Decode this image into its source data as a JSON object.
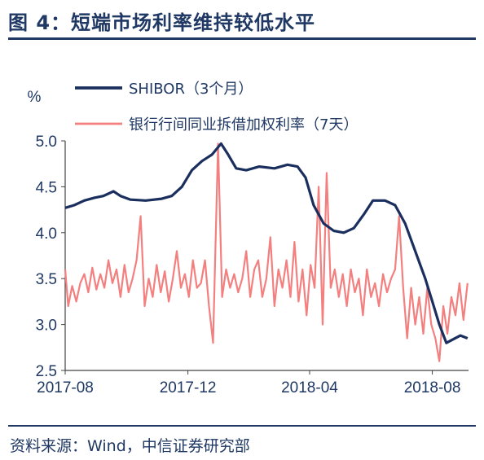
{
  "title": "图 4：短端市场利率维持较低水平",
  "source": "资料来源：Wind，中信证券研究部",
  "colors": {
    "shibor": "#1b2f5e",
    "interbank": "#f37f7f",
    "text": "#1f3864"
  },
  "chart_data": {
    "type": "line",
    "ylabel": "%",
    "ylim": [
      2.5,
      5.0
    ],
    "yticks": [
      "2.5",
      "3.0",
      "3.5",
      "4.0",
      "4.5",
      "5.0"
    ],
    "xlim": [
      "2017-08-01",
      "2018-09-06"
    ],
    "xticks": [
      {
        "label": "2017-08",
        "date": "2017-08-01"
      },
      {
        "label": "2017-12",
        "date": "2017-12-01"
      },
      {
        "label": "2018-04",
        "date": "2018-04-01"
      },
      {
        "label": "2018-08",
        "date": "2018-08-01"
      }
    ],
    "legend_position": "top-left",
    "grid": false,
    "series": [
      {
        "name": "SHIBOR（3个月）",
        "points": [
          [
            "2017-08-01",
            4.27
          ],
          [
            "2017-08-10",
            4.3
          ],
          [
            "2017-08-20",
            4.35
          ],
          [
            "2017-08-30",
            4.38
          ],
          [
            "2017-09-08",
            4.4
          ],
          [
            "2017-09-18",
            4.45
          ],
          [
            "2017-09-25",
            4.4
          ],
          [
            "2017-10-05",
            4.36
          ],
          [
            "2017-10-20",
            4.35
          ],
          [
            "2017-11-05",
            4.37
          ],
          [
            "2017-11-15",
            4.4
          ],
          [
            "2017-11-25",
            4.5
          ],
          [
            "2017-12-05",
            4.68
          ],
          [
            "2017-12-15",
            4.78
          ],
          [
            "2017-12-25",
            4.85
          ],
          [
            "2018-01-03",
            4.97
          ],
          [
            "2018-01-10",
            4.85
          ],
          [
            "2018-01-18",
            4.7
          ],
          [
            "2018-01-28",
            4.68
          ],
          [
            "2018-02-10",
            4.72
          ],
          [
            "2018-02-25",
            4.7
          ],
          [
            "2018-03-10",
            4.74
          ],
          [
            "2018-03-20",
            4.72
          ],
          [
            "2018-03-28",
            4.6
          ],
          [
            "2018-04-05",
            4.3
          ],
          [
            "2018-04-15",
            4.1
          ],
          [
            "2018-04-25",
            4.02
          ],
          [
            "2018-05-05",
            4.0
          ],
          [
            "2018-05-15",
            4.05
          ],
          [
            "2018-05-25",
            4.2
          ],
          [
            "2018-06-03",
            4.35
          ],
          [
            "2018-06-15",
            4.35
          ],
          [
            "2018-06-25",
            4.3
          ],
          [
            "2018-07-05",
            4.1
          ],
          [
            "2018-07-15",
            3.8
          ],
          [
            "2018-07-25",
            3.5
          ],
          [
            "2018-08-01",
            3.25
          ],
          [
            "2018-08-08",
            3.0
          ],
          [
            "2018-08-15",
            2.8
          ],
          [
            "2018-08-22",
            2.84
          ],
          [
            "2018-08-29",
            2.88
          ],
          [
            "2018-09-05",
            2.85
          ]
        ]
      },
      {
        "name": "银行行间同业拆借加权利率（7天）",
        "points": [
          [
            "2017-08-01",
            3.6
          ],
          [
            "2017-08-04",
            3.2
          ],
          [
            "2017-08-08",
            3.42
          ],
          [
            "2017-08-12",
            3.25
          ],
          [
            "2017-08-16",
            3.45
          ],
          [
            "2017-08-20",
            3.55
          ],
          [
            "2017-08-24",
            3.35
          ],
          [
            "2017-08-28",
            3.62
          ],
          [
            "2017-09-01",
            3.38
          ],
          [
            "2017-09-05",
            3.55
          ],
          [
            "2017-09-09",
            3.4
          ],
          [
            "2017-09-13",
            3.7
          ],
          [
            "2017-09-17",
            3.45
          ],
          [
            "2017-09-21",
            3.6
          ],
          [
            "2017-09-25",
            3.3
          ],
          [
            "2017-09-29",
            3.65
          ],
          [
            "2017-10-03",
            3.35
          ],
          [
            "2017-10-07",
            3.5
          ],
          [
            "2017-10-11",
            3.7
          ],
          [
            "2017-10-15",
            4.18
          ],
          [
            "2017-10-19",
            3.2
          ],
          [
            "2017-10-23",
            3.5
          ],
          [
            "2017-10-27",
            3.3
          ],
          [
            "2017-10-31",
            3.65
          ],
          [
            "2017-11-04",
            3.35
          ],
          [
            "2017-11-08",
            3.58
          ],
          [
            "2017-11-12",
            3.25
          ],
          [
            "2017-11-16",
            3.5
          ],
          [
            "2017-11-20",
            3.8
          ],
          [
            "2017-11-24",
            3.4
          ],
          [
            "2017-11-28",
            3.55
          ],
          [
            "2017-12-02",
            3.3
          ],
          [
            "2017-12-06",
            3.7
          ],
          [
            "2017-12-10",
            3.4
          ],
          [
            "2017-12-14",
            3.45
          ],
          [
            "2017-12-18",
            3.7
          ],
          [
            "2017-12-22",
            3.2
          ],
          [
            "2017-12-26",
            2.8
          ],
          [
            "2017-12-31",
            4.97
          ],
          [
            "2018-01-04",
            3.3
          ],
          [
            "2018-01-08",
            3.6
          ],
          [
            "2018-01-12",
            3.4
          ],
          [
            "2018-01-16",
            3.55
          ],
          [
            "2018-01-20",
            3.35
          ],
          [
            "2018-01-24",
            3.5
          ],
          [
            "2018-01-28",
            3.8
          ],
          [
            "2018-02-01",
            3.3
          ],
          [
            "2018-02-05",
            3.6
          ],
          [
            "2018-02-09",
            3.7
          ],
          [
            "2018-02-13",
            3.3
          ],
          [
            "2018-02-17",
            3.5
          ],
          [
            "2018-02-21",
            3.95
          ],
          [
            "2018-02-25",
            3.2
          ],
          [
            "2018-03-01",
            3.6
          ],
          [
            "2018-03-05",
            3.4
          ],
          [
            "2018-03-09",
            3.7
          ],
          [
            "2018-03-13",
            3.3
          ],
          [
            "2018-03-17",
            3.9
          ],
          [
            "2018-03-21",
            3.25
          ],
          [
            "2018-03-25",
            3.6
          ],
          [
            "2018-03-29",
            3.1
          ],
          [
            "2018-04-02",
            3.65
          ],
          [
            "2018-04-06",
            3.4
          ],
          [
            "2018-04-10",
            4.5
          ],
          [
            "2018-04-14",
            3.0
          ],
          [
            "2018-04-18",
            4.65
          ],
          [
            "2018-04-22",
            3.4
          ],
          [
            "2018-04-26",
            3.6
          ],
          [
            "2018-04-30",
            3.3
          ],
          [
            "2018-05-04",
            3.55
          ],
          [
            "2018-05-08",
            3.2
          ],
          [
            "2018-05-12",
            3.6
          ],
          [
            "2018-05-16",
            3.35
          ],
          [
            "2018-05-20",
            3.5
          ],
          [
            "2018-05-24",
            3.1
          ],
          [
            "2018-05-28",
            3.6
          ],
          [
            "2018-06-01",
            3.3
          ],
          [
            "2018-06-05",
            3.45
          ],
          [
            "2018-06-09",
            3.2
          ],
          [
            "2018-06-13",
            3.55
          ],
          [
            "2018-06-17",
            3.35
          ],
          [
            "2018-06-21",
            3.5
          ],
          [
            "2018-06-25",
            3.6
          ],
          [
            "2018-06-29",
            4.18
          ],
          [
            "2018-07-03",
            3.4
          ],
          [
            "2018-07-07",
            2.85
          ],
          [
            "2018-07-11",
            3.4
          ],
          [
            "2018-07-15",
            3.0
          ],
          [
            "2018-07-19",
            3.3
          ],
          [
            "2018-07-23",
            2.9
          ],
          [
            "2018-07-27",
            3.4
          ],
          [
            "2018-07-31",
            3.0
          ],
          [
            "2018-08-04",
            2.85
          ],
          [
            "2018-08-08",
            2.6
          ],
          [
            "2018-08-12",
            3.2
          ],
          [
            "2018-08-16",
            2.9
          ],
          [
            "2018-08-20",
            3.3
          ],
          [
            "2018-08-24",
            3.1
          ],
          [
            "2018-08-28",
            3.45
          ],
          [
            "2018-09-01",
            3.05
          ],
          [
            "2018-09-05",
            3.45
          ]
        ]
      }
    ]
  }
}
